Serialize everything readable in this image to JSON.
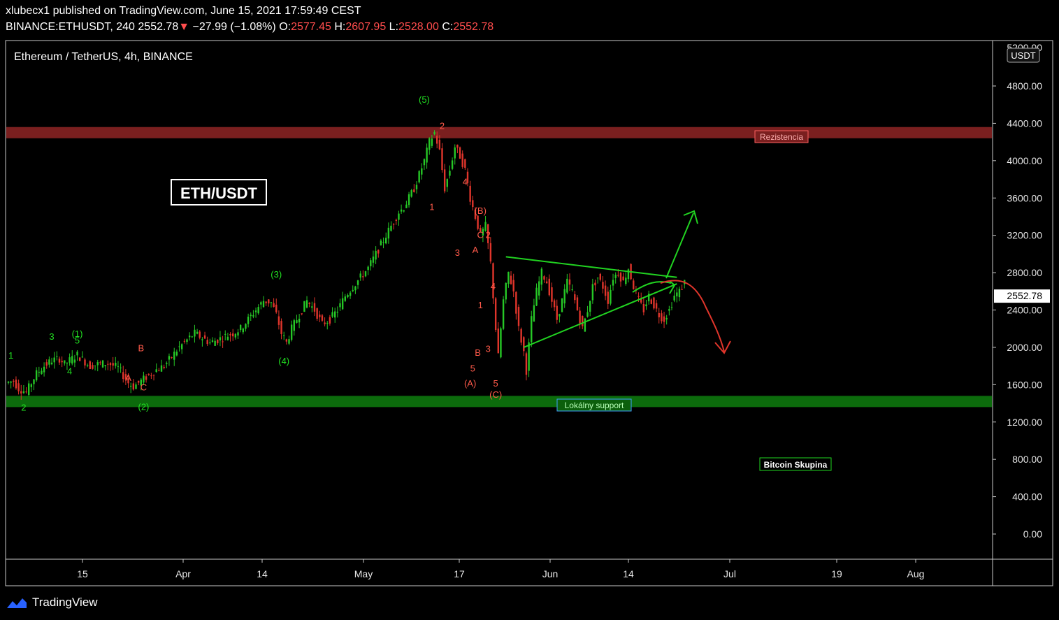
{
  "header": {
    "published": "xlubecx1 published on TradingView.com, June 15, 2021 17:59:49 CEST",
    "symbol": "BINANCE:ETHUSDT, 240",
    "last": "2552.78",
    "change_arrow": "▼",
    "change": "−27.99 (−1.08%)",
    "o_label": "O:",
    "o_value": "2577.45",
    "h_label": "H:",
    "h_value": "2607.95",
    "l_label": "L:",
    "l_value": "2528.00",
    "c_label": "C:",
    "c_value": "2552.78"
  },
  "footer": {
    "brand": "TradingView"
  },
  "chart_data": {
    "type": "candlestick",
    "title": "Ethereum / TetherUS, 4h, BINANCE",
    "currency_badge": "USDT",
    "symbol_box": "ETH/USDT",
    "y_ticks": [
      "4800.00",
      "4400.00",
      "4000.00",
      "3600.00",
      "3200.00",
      "2800.00",
      "2400.00",
      "2000.00",
      "1600.00",
      "1200.00",
      "800.00",
      "400.00",
      "0.00"
    ],
    "y_tick_values": [
      4800,
      4400,
      4000,
      3600,
      3200,
      2800,
      2400,
      2000,
      1600,
      1200,
      800,
      400,
      0
    ],
    "y_top_partial": "5200.00",
    "ylim": [
      -500,
      5500
    ],
    "x_ticks": [
      "15",
      "Apr",
      "14",
      "May",
      "17",
      "Jun",
      "14",
      "Jul",
      "19",
      "Aug"
    ],
    "last_price_label": "2552.78",
    "price_path": [
      [
        0,
        1620
      ],
      [
        3,
        1640
      ],
      [
        5,
        1560
      ],
      [
        8,
        1520
      ],
      [
        10,
        1620
      ],
      [
        12,
        1720
      ],
      [
        15,
        1800
      ],
      [
        18,
        1860
      ],
      [
        21,
        1880
      ],
      [
        23,
        1820
      ],
      [
        25,
        1860
      ],
      [
        28,
        1920
      ],
      [
        30,
        1870
      ],
      [
        33,
        1800
      ],
      [
        36,
        1820
      ],
      [
        40,
        1830
      ],
      [
        44,
        1780
      ],
      [
        46,
        1700
      ],
      [
        48,
        1620
      ],
      [
        50,
        1580
      ],
      [
        53,
        1640
      ],
      [
        56,
        1700
      ],
      [
        59,
        1760
      ],
      [
        62,
        1800
      ],
      [
        65,
        1900
      ],
      [
        68,
        2000
      ],
      [
        71,
        2080
      ],
      [
        74,
        2150
      ],
      [
        77,
        2100
      ],
      [
        80,
        2050
      ],
      [
        83,
        2080
      ],
      [
        86,
        2120
      ],
      [
        89,
        2150
      ],
      [
        92,
        2200
      ],
      [
        95,
        2300
      ],
      [
        98,
        2400
      ],
      [
        101,
        2500
      ],
      [
        104,
        2480
      ],
      [
        106,
        2350
      ],
      [
        108,
        2150
      ],
      [
        110,
        2050
      ],
      [
        112,
        2200
      ],
      [
        115,
        2350
      ],
      [
        118,
        2500
      ],
      [
        121,
        2400
      ],
      [
        124,
        2250
      ],
      [
        127,
        2300
      ],
      [
        130,
        2400
      ],
      [
        133,
        2550
      ],
      [
        136,
        2650
      ],
      [
        139,
        2750
      ],
      [
        142,
        2850
      ],
      [
        145,
        3000
      ],
      [
        148,
        3150
      ],
      [
        150,
        3250
      ],
      [
        152,
        3350
      ],
      [
        154,
        3450
      ],
      [
        156,
        3500
      ],
      [
        158,
        3600
      ],
      [
        160,
        3700
      ],
      [
        162,
        3850
      ],
      [
        164,
        4000
      ],
      [
        166,
        4200
      ],
      [
        168,
        4300
      ],
      [
        170,
        4100
      ],
      [
        172,
        3700
      ],
      [
        174,
        3900
      ],
      [
        176,
        4150
      ],
      [
        178,
        4050
      ],
      [
        180,
        3900
      ],
      [
        182,
        3600
      ],
      [
        184,
        3400
      ],
      [
        186,
        3200
      ],
      [
        188,
        3300
      ],
      [
        190,
        2900
      ],
      [
        192,
        2200
      ],
      [
        193,
        1900
      ],
      [
        195,
        2500
      ],
      [
        197,
        2800
      ],
      [
        199,
        2600
      ],
      [
        201,
        2200
      ],
      [
        203,
        1950
      ],
      [
        204,
        1750
      ],
      [
        206,
        2300
      ],
      [
        208,
        2600
      ],
      [
        210,
        2800
      ],
      [
        212,
        2700
      ],
      [
        214,
        2500
      ],
      [
        216,
        2300
      ],
      [
        218,
        2500
      ],
      [
        220,
        2700
      ],
      [
        222,
        2600
      ],
      [
        224,
        2400
      ],
      [
        226,
        2200
      ],
      [
        228,
        2400
      ],
      [
        230,
        2650
      ],
      [
        232,
        2750
      ],
      [
        234,
        2650
      ],
      [
        236,
        2500
      ],
      [
        238,
        2750
      ],
      [
        240,
        2800
      ],
      [
        242,
        2700
      ],
      [
        244,
        2850
      ],
      [
        246,
        2650
      ],
      [
        248,
        2500
      ],
      [
        250,
        2400
      ],
      [
        252,
        2550
      ],
      [
        254,
        2450
      ],
      [
        256,
        2350
      ],
      [
        258,
        2300
      ],
      [
        260,
        2400
      ],
      [
        262,
        2550
      ],
      [
        264,
        2600
      ],
      [
        266,
        2700
      ]
    ],
    "resistance_zone": {
      "label": "Rezistencia",
      "from": 4240,
      "to": 4360
    },
    "support_zone": {
      "label": "Lokálny support",
      "from": 1360,
      "to": 1480
    },
    "triangle": {
      "upper": [
        [
          195,
          2970
        ],
        [
          262,
          2750
        ]
      ],
      "lower": [
        [
          202,
          2000
        ],
        [
          262,
          2680
        ]
      ]
    },
    "scenarios": [
      {
        "direction": "up",
        "color": "#21d321"
      },
      {
        "direction": "down",
        "color": "#e0352b"
      }
    ],
    "wave_labels": [
      {
        "text": "(5)",
        "x": 163,
        "y": 4620,
        "color": "green"
      },
      {
        "text": "(3)",
        "x": 105,
        "y": 2750,
        "color": "green"
      },
      {
        "text": "(4)",
        "x": 108,
        "y": 1820,
        "color": "green"
      },
      {
        "text": "(1)",
        "x": 27,
        "y": 2110,
        "color": "green"
      },
      {
        "text": "(2)",
        "x": 53,
        "y": 1330,
        "color": "green"
      },
      {
        "text": "1",
        "x": 1,
        "y": 1880,
        "color": "green"
      },
      {
        "text": "2",
        "x": 6,
        "y": 1320,
        "color": "green"
      },
      {
        "text": "3",
        "x": 17,
        "y": 2080,
        "color": "green"
      },
      {
        "text": "4",
        "x": 24,
        "y": 1710,
        "color": "green"
      },
      {
        "text": "5",
        "x": 27,
        "y": 2040,
        "color": "green"
      },
      {
        "text": "A",
        "x": 47,
        "y": 1640,
        "color": "red"
      },
      {
        "text": "B",
        "x": 52,
        "y": 1960,
        "color": "red"
      },
      {
        "text": "C",
        "x": 53,
        "y": 1540,
        "color": "red"
      },
      {
        "text": "2",
        "x": 170,
        "y": 4340,
        "color": "red"
      },
      {
        "text": "1",
        "x": 166,
        "y": 3470,
        "color": "red"
      },
      {
        "text": "4",
        "x": 179,
        "y": 3740,
        "color": "red"
      },
      {
        "text": "(B)",
        "x": 185,
        "y": 3430,
        "color": "red"
      },
      {
        "text": "C",
        "x": 185,
        "y": 3170,
        "color": "red"
      },
      {
        "text": "2",
        "x": 188,
        "y": 3170,
        "color": "red"
      },
      {
        "text": "3",
        "x": 176,
        "y": 2980,
        "color": "red"
      },
      {
        "text": "A",
        "x": 183,
        "y": 3010,
        "color": "red"
      },
      {
        "text": "4",
        "x": 190,
        "y": 2620,
        "color": "red"
      },
      {
        "text": "1",
        "x": 185,
        "y": 2420,
        "color": "red"
      },
      {
        "text": "B",
        "x": 184,
        "y": 1910,
        "color": "red"
      },
      {
        "text": "3",
        "x": 188,
        "y": 1950,
        "color": "red"
      },
      {
        "text": "5",
        "x": 182,
        "y": 1740,
        "color": "red"
      },
      {
        "text": "(A)",
        "x": 181,
        "y": 1580,
        "color": "red"
      },
      {
        "text": "5",
        "x": 191,
        "y": 1580,
        "color": "red"
      },
      {
        "text": "(C)",
        "x": 191,
        "y": 1460,
        "color": "red"
      }
    ],
    "colors": {
      "up": "#26c826",
      "down": "#e0352b",
      "resistance": "#7a1f1f",
      "support": "#0c6b0c",
      "grid": "#1a1a1a"
    },
    "annotation_box": {
      "text": "Bitcoin Skupina"
    }
  }
}
